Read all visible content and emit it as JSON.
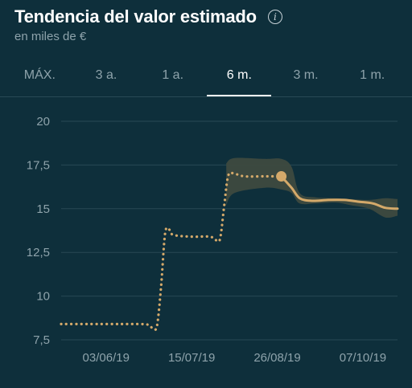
{
  "header": {
    "title": "Tendencia del valor estimado",
    "subtitle": "en miles de €",
    "info_icon": "info-icon"
  },
  "tabs": [
    {
      "label": "MÁX.",
      "active": false
    },
    {
      "label": "3 a.",
      "active": false
    },
    {
      "label": "1 a.",
      "active": false
    },
    {
      "label": "6 m.",
      "active": true
    },
    {
      "label": "3 m.",
      "active": false
    },
    {
      "label": "1 m.",
      "active": false
    }
  ],
  "colors": {
    "background": "#0e2f3b",
    "line": "#d4a96a",
    "band": "#3e4a3f",
    "grid": "#284955",
    "muted_text": "#8ea3ab"
  },
  "chart_data": {
    "type": "line",
    "title": "Tendencia del valor estimado",
    "subtitle": "en miles de €",
    "ylim": [
      7.5,
      20
    ],
    "yticks": [
      "20",
      "17,5",
      "15",
      "12,5",
      "10",
      "7,5"
    ],
    "ytick_values": [
      20,
      17.5,
      15,
      12.5,
      10,
      7.5
    ],
    "xticks": [
      "03/06/19",
      "15/07/19",
      "26/08/19",
      "07/10/19"
    ],
    "xtick_dates": [
      "2019-06-03",
      "2019-07-15",
      "2019-08-26",
      "2019-10-07"
    ],
    "x_range": [
      "2019-05-12",
      "2019-10-24"
    ],
    "grid": true,
    "series": [
      {
        "style": "dotted-historical",
        "points": [
          [
            "2019-05-12",
            8.4
          ],
          [
            "2019-05-20",
            8.4
          ],
          [
            "2019-05-30",
            8.4
          ],
          [
            "2019-06-10",
            8.4
          ],
          [
            "2019-06-20",
            8.4
          ],
          [
            "2019-06-24",
            8.35
          ],
          [
            "2019-06-26",
            8.15
          ],
          [
            "2019-06-28",
            8.3
          ],
          [
            "2019-06-30",
            10.5
          ],
          [
            "2019-07-02",
            13.6
          ],
          [
            "2019-07-04",
            13.8
          ],
          [
            "2019-07-06",
            13.5
          ],
          [
            "2019-07-15",
            13.4
          ],
          [
            "2019-07-24",
            13.4
          ],
          [
            "2019-07-27",
            13.2
          ],
          [
            "2019-07-29",
            13.3
          ],
          [
            "2019-07-31",
            15.2
          ],
          [
            "2019-08-02",
            16.9
          ],
          [
            "2019-08-05",
            17.0
          ],
          [
            "2019-08-10",
            16.85
          ],
          [
            "2019-08-20",
            16.85
          ],
          [
            "2019-08-28",
            16.85
          ]
        ]
      },
      {
        "style": "solid-estimate",
        "points": [
          [
            "2019-08-28",
            16.85
          ],
          [
            "2019-09-02",
            16.2
          ],
          [
            "2019-09-06",
            15.6
          ],
          [
            "2019-09-12",
            15.45
          ],
          [
            "2019-09-20",
            15.5
          ],
          [
            "2019-09-28",
            15.5
          ],
          [
            "2019-10-05",
            15.4
          ],
          [
            "2019-10-12",
            15.3
          ],
          [
            "2019-10-18",
            15.05
          ],
          [
            "2019-10-24",
            15.0
          ]
        ]
      }
    ],
    "confidence_band": {
      "from": "2019-08-01",
      "upper": [
        [
          "2019-08-01",
          17.6
        ],
        [
          "2019-08-05",
          17.9
        ],
        [
          "2019-08-20",
          17.85
        ],
        [
          "2019-08-28",
          17.85
        ],
        [
          "2019-09-02",
          17.4
        ],
        [
          "2019-09-06",
          15.9
        ],
        [
          "2019-09-14",
          15.65
        ],
        [
          "2019-09-24",
          15.6
        ],
        [
          "2019-10-01",
          15.55
        ],
        [
          "2019-10-10",
          15.5
        ],
        [
          "2019-10-18",
          15.6
        ],
        [
          "2019-10-24",
          15.55
        ]
      ],
      "lower": [
        [
          "2019-10-24",
          14.6
        ],
        [
          "2019-10-18",
          14.5
        ],
        [
          "2019-10-10",
          15.0
        ],
        [
          "2019-10-01",
          15.2
        ],
        [
          "2019-09-24",
          15.35
        ],
        [
          "2019-09-14",
          15.3
        ],
        [
          "2019-09-06",
          15.3
        ],
        [
          "2019-09-02",
          15.9
        ],
        [
          "2019-08-28",
          16.1
        ],
        [
          "2019-08-20",
          16.2
        ],
        [
          "2019-08-05",
          15.9
        ],
        [
          "2019-08-01",
          15.2
        ]
      ]
    },
    "marker": {
      "date": "2019-08-28",
      "value": 16.85
    }
  }
}
